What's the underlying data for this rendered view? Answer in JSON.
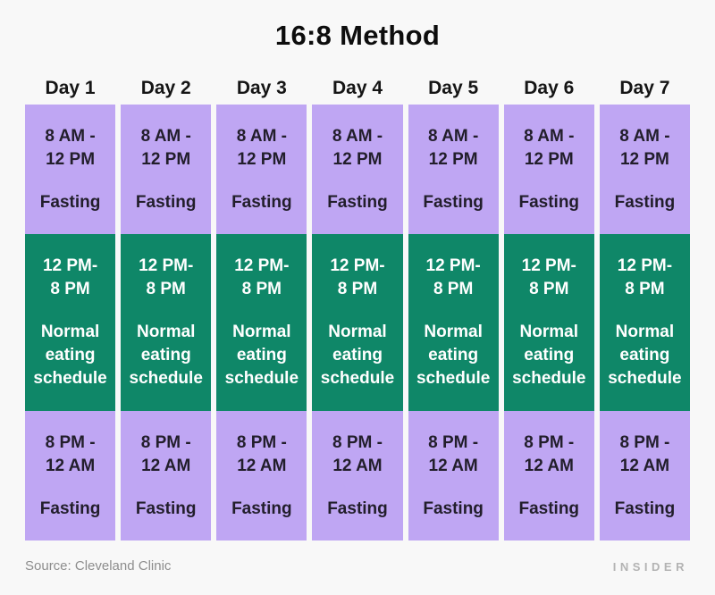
{
  "title": "16:8 Method",
  "colors": {
    "background": "#f8f8f8",
    "purple": "#bfa6f3",
    "green": "#0f8768"
  },
  "days": [
    "Day 1",
    "Day 2",
    "Day 3",
    "Day 4",
    "Day 5",
    "Day 6",
    "Day 7"
  ],
  "blocks": [
    {
      "name": "morning-fasting-block",
      "type": "fasting",
      "position": "b-top",
      "time_lines": [
        "8 AM -",
        "12 PM"
      ],
      "label_lines": [
        "Fasting"
      ]
    },
    {
      "name": "eating-window-block",
      "type": "eating",
      "position": "b-middle",
      "time_lines": [
        "12 PM-",
        "8 PM"
      ],
      "label_lines": [
        "Normal",
        "eating",
        "schedule"
      ]
    },
    {
      "name": "evening-fasting-block",
      "type": "fasting",
      "position": "b-bottom",
      "time_lines": [
        "8 PM -",
        "12 AM"
      ],
      "label_lines": [
        "Fasting"
      ]
    }
  ],
  "footer": {
    "source": "Source: Cleveland Clinic",
    "brand": "INSIDER"
  },
  "chart_data": {
    "type": "table",
    "title": "16:8 Method",
    "columns": [
      "Day 1",
      "Day 2",
      "Day 3",
      "Day 4",
      "Day 5",
      "Day 6",
      "Day 7"
    ],
    "rows": [
      {
        "time_range": "8 AM - 12 PM",
        "activity": "Fasting",
        "applies_to": "all 7 days"
      },
      {
        "time_range": "12 PM- 8 PM",
        "activity": "Normal eating schedule",
        "applies_to": "all 7 days"
      },
      {
        "time_range": "8 PM - 12 AM",
        "activity": "Fasting",
        "applies_to": "all 7 days"
      }
    ],
    "legend": [
      {
        "label": "Fasting",
        "color": "#bfa6f3"
      },
      {
        "label": "Normal eating schedule",
        "color": "#0f8768"
      }
    ],
    "source": "Source: Cleveland Clinic",
    "brand": "INSIDER"
  }
}
